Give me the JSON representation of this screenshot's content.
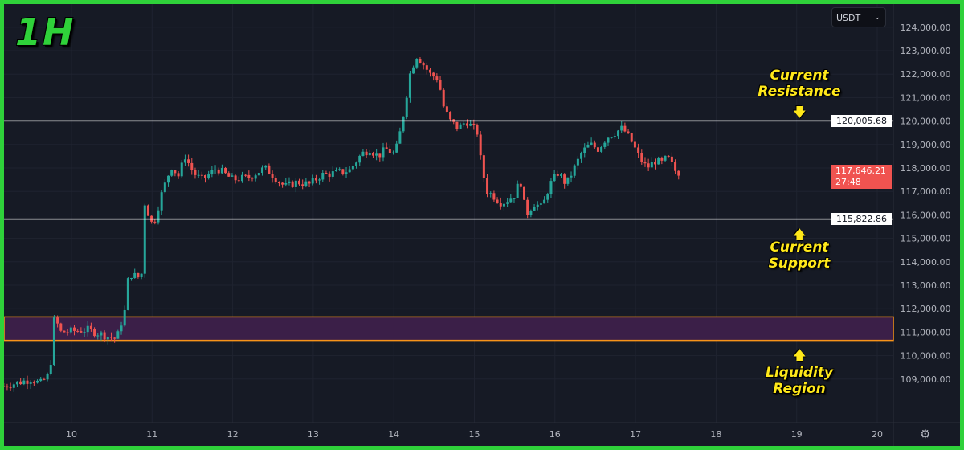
{
  "timeframe_label": "1H",
  "currency_selector": "USDT",
  "annotations": {
    "resistance": [
      "Current",
      "Resistance"
    ],
    "support": [
      "Current",
      "Support"
    ],
    "liquidity": [
      "Liquidity",
      "Region"
    ]
  },
  "colors": {
    "frame": "#2fd13a",
    "up": "#26a69a",
    "down": "#ef5350",
    "level_line": "#ffffff",
    "liquidity_fill": "#3b1f48",
    "liquidity_border": "#f7931a",
    "annotation": "#ffe81a"
  },
  "chart_data": {
    "type": "candlestick",
    "xlabel": "",
    "ylabel": "",
    "x_ticks": [
      "10",
      "11",
      "12",
      "13",
      "14",
      "15",
      "16",
      "17",
      "18",
      "19",
      "20"
    ],
    "y_ticks": [
      "124,000.00",
      "123,000.00",
      "122,000.00",
      "121,000.00",
      "120,000.00",
      "119,000.00",
      "118,000.00",
      "117,000.00",
      "116,000.00",
      "115,000.00",
      "114,000.00",
      "113,000.00",
      "112,000.00",
      "111,000.00",
      "110,000.00",
      "109,000.00"
    ],
    "xlim": [
      9.16,
      20.2
    ],
    "ylim": [
      108000,
      124200
    ],
    "grid": true,
    "interval": "1H",
    "price_path": [
      [
        9.16,
        108700
      ],
      [
        9.51,
        109000
      ],
      [
        9.61,
        108800
      ],
      [
        9.73,
        109200
      ],
      [
        9.79,
        111700
      ],
      [
        9.86,
        111000
      ],
      [
        10.2,
        111100
      ],
      [
        10.56,
        110700
      ],
      [
        10.61,
        111300
      ],
      [
        10.67,
        112000
      ],
      [
        10.71,
        113500
      ],
      [
        10.86,
        113300
      ],
      [
        10.89,
        114000
      ],
      [
        10.91,
        116500
      ],
      [
        11.01,
        115500
      ],
      [
        11.11,
        116800
      ],
      [
        11.21,
        117800
      ],
      [
        11.26,
        118200
      ],
      [
        11.31,
        117500
      ],
      [
        11.41,
        118500
      ],
      [
        11.51,
        117800
      ],
      [
        11.61,
        117500
      ],
      [
        11.7,
        117700
      ],
      [
        11.8,
        118000
      ],
      [
        12.0,
        117500
      ],
      [
        12.2,
        117600
      ],
      [
        12.4,
        118000
      ],
      [
        12.55,
        117500
      ],
      [
        12.65,
        117200
      ],
      [
        12.8,
        117400
      ],
      [
        12.95,
        117300
      ],
      [
        13.1,
        117700
      ],
      [
        13.3,
        117800
      ],
      [
        13.45,
        117900
      ],
      [
        13.6,
        118600
      ],
      [
        13.7,
        118800
      ],
      [
        13.8,
        118500
      ],
      [
        13.9,
        118800
      ],
      [
        14.0,
        118600
      ],
      [
        14.05,
        119000
      ],
      [
        14.13,
        120500
      ],
      [
        14.2,
        122000
      ],
      [
        14.28,
        122800
      ],
      [
        14.35,
        122500
      ],
      [
        14.45,
        122000
      ],
      [
        14.55,
        121800
      ],
      [
        14.62,
        120600
      ],
      [
        14.7,
        120000
      ],
      [
        14.8,
        119700
      ],
      [
        14.9,
        120000
      ],
      [
        15.04,
        119500
      ],
      [
        15.09,
        118000
      ],
      [
        15.16,
        117000
      ],
      [
        15.24,
        116800
      ],
      [
        15.34,
        116500
      ],
      [
        15.49,
        116800
      ],
      [
        15.57,
        117500
      ],
      [
        15.64,
        116000
      ],
      [
        15.74,
        116500
      ],
      [
        15.84,
        116300
      ],
      [
        15.94,
        117300
      ],
      [
        16.04,
        117800
      ],
      [
        16.14,
        117300
      ],
      [
        16.24,
        118000
      ],
      [
        16.34,
        118700
      ],
      [
        16.44,
        119000
      ],
      [
        16.54,
        118800
      ],
      [
        16.64,
        119300
      ],
      [
        16.74,
        119500
      ],
      [
        16.84,
        119700
      ],
      [
        16.94,
        119200
      ],
      [
        17.04,
        118500
      ],
      [
        17.14,
        118000
      ],
      [
        17.24,
        118300
      ],
      [
        17.34,
        118200
      ],
      [
        17.39,
        118500
      ],
      [
        17.49,
        117900
      ],
      [
        17.54,
        117646.21
      ]
    ],
    "levels": {
      "resistance": {
        "value": 120005.68,
        "label": "120,005.68"
      },
      "support": {
        "value": 115822.86,
        "label": "115,822.86"
      },
      "liquidity_region": [
        110650,
        111650
      ]
    },
    "last_price": {
      "label": "117,646.21",
      "countdown": "27:48"
    }
  }
}
